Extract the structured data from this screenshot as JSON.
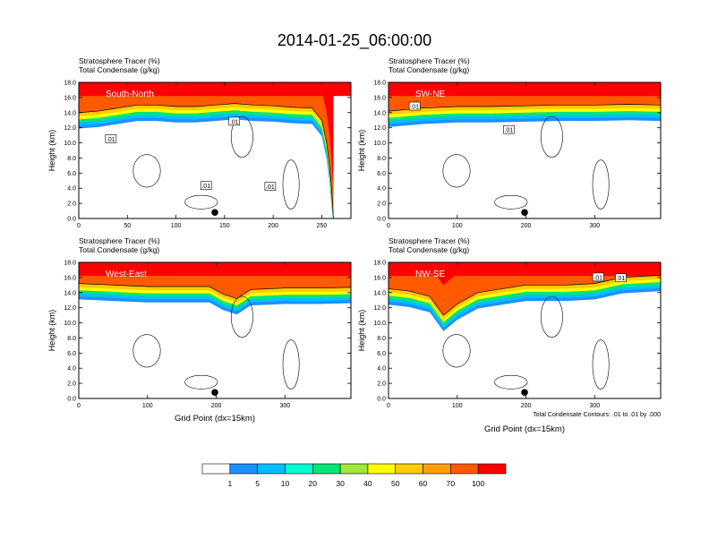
{
  "title": "2014-01-25_06:00:00",
  "colors": {
    "levels": [
      "#ffffff",
      "#1e90ff",
      "#00bfff",
      "#00ffd0",
      "#00e676",
      "#a0e63c",
      "#ffff00",
      "#ffcc00",
      "#ffa000",
      "#ff5a00",
      "#ff0000"
    ],
    "contour": "#000000",
    "dot": "#000000"
  },
  "colorbar": {
    "labels": [
      "1",
      "5",
      "10",
      "20",
      "30",
      "40",
      "50",
      "60",
      "70",
      "100"
    ]
  },
  "footnote": "Total Condensate Contours: .01 to .01 by .000",
  "xlabel": "Grid Point (dx=15km)",
  "ylabel": "Height (km)",
  "chart_data": [
    {
      "type": "heatmap",
      "region_label": "South-North",
      "header_line1": "Stratosphere Tracer   (%)",
      "header_line2": "Total Condensate   (g/kg)",
      "xlim": [
        0,
        280
      ],
      "ylim": [
        0,
        18
      ],
      "xticks": [
        "0",
        "50",
        "100",
        "150",
        "200",
        "250"
      ],
      "yticks": [
        "0.0",
        "2.0",
        "4.0",
        "6.0",
        "8.0",
        "10.0",
        "12.0",
        "14.0",
        "16.0",
        "18.0"
      ],
      "xlabel": "",
      "ylabel": "Height (km)",
      "contour_labels": [
        {
          "text": ".01",
          "x": 160,
          "y": 12.8
        },
        {
          "text": ".01",
          "x": 33,
          "y": 10.5
        },
        {
          "text": ".01",
          "x": 131,
          "y": 4.3
        },
        {
          "text": ".01",
          "x": 197,
          "y": 4.2
        }
      ],
      "tropopause": [
        [
          0,
          14.0
        ],
        [
          20,
          14.2
        ],
        [
          40,
          14.6
        ],
        [
          60,
          15.0
        ],
        [
          80,
          15.0
        ],
        [
          100,
          14.8
        ],
        [
          120,
          14.8
        ],
        [
          140,
          15.0
        ],
        [
          160,
          15.2
        ],
        [
          180,
          15.0
        ],
        [
          200,
          14.9
        ],
        [
          220,
          14.7
        ],
        [
          240,
          14.6
        ],
        [
          250,
          13
        ],
        [
          255,
          10
        ],
        [
          258,
          7
        ],
        [
          260,
          4
        ],
        [
          262,
          0
        ]
      ],
      "marker": {
        "x": 140,
        "y": 0.8
      }
    },
    {
      "type": "heatmap",
      "region_label": "SW-NE",
      "header_line1": "Stratosphere Tracer   (%)",
      "header_line2": "Total Condensate   (g/kg)",
      "xlim": [
        0,
        396
      ],
      "ylim": [
        0,
        18
      ],
      "xticks": [
        "0",
        "100",
        "200",
        "300"
      ],
      "yticks": [
        "0.0",
        "2.0",
        "4.0",
        "6.0",
        "8.0",
        "10.0",
        "12.0",
        "14.0",
        "16.0",
        "18.0"
      ],
      "xlabel": "",
      "ylabel": "Height (km)",
      "contour_labels": [
        {
          "text": ".01",
          "x": 38,
          "y": 14.8
        },
        {
          "text": ".01",
          "x": 175,
          "y": 11.7
        }
      ],
      "tropopause": [
        [
          0,
          14.2
        ],
        [
          50,
          14.6
        ],
        [
          100,
          14.8
        ],
        [
          150,
          14.8
        ],
        [
          200,
          14.9
        ],
        [
          250,
          15.0
        ],
        [
          300,
          15.0
        ],
        [
          350,
          15.1
        ],
        [
          396,
          15.0
        ]
      ],
      "marker": {
        "x": 198,
        "y": 0.8
      }
    },
    {
      "type": "heatmap",
      "region_label": "West-East",
      "header_line1": "Stratosphere Tracer   (%)",
      "header_line2": "Total Condensate   (g/kg)",
      "xlim": [
        0,
        396
      ],
      "ylim": [
        0,
        18
      ],
      "xticks": [
        "0",
        "100",
        "200",
        "300"
      ],
      "yticks": [
        "0.0",
        "2.0",
        "4.0",
        "6.0",
        "8.0",
        "10.0",
        "12.0",
        "14.0",
        "16.0",
        "18.0"
      ],
      "xlabel": "Grid Point (dx=15km)",
      "ylabel": "Height (km)",
      "contour_labels": [],
      "tropopause": [
        [
          0,
          15.2
        ],
        [
          50,
          15.0
        ],
        [
          100,
          14.8
        ],
        [
          150,
          14.8
        ],
        [
          190,
          14.8
        ],
        [
          210,
          13.8
        ],
        [
          230,
          13.2
        ],
        [
          250,
          14.4
        ],
        [
          300,
          14.6
        ],
        [
          350,
          14.6
        ],
        [
          396,
          14.7
        ]
      ],
      "marker": {
        "x": 198,
        "y": 0.8
      }
    },
    {
      "type": "heatmap",
      "region_label": "NW-SE",
      "header_line1": "Stratosphere Tracer   (%)",
      "header_line2": "Total Condensate   (g/kg)",
      "xlim": [
        0,
        396
      ],
      "ylim": [
        0,
        18
      ],
      "xticks": [
        "0",
        "100",
        "200",
        "300"
      ],
      "yticks": [
        "0.0",
        "2.0",
        "4.0",
        "6.0",
        "8.0",
        "10.0",
        "12.0",
        "14.0",
        "16.0",
        "18.0"
      ],
      "xlabel": "Grid Point (dx=15km)",
      "ylabel": "Height (km)",
      "contour_labels": [
        {
          "text": ".01",
          "x": 305,
          "y": 16.0
        },
        {
          "text": ".01",
          "x": 338,
          "y": 15.9
        }
      ],
      "tropopause": [
        [
          0,
          14.5
        ],
        [
          30,
          14.2
        ],
        [
          60,
          13.5
        ],
        [
          80,
          11.0
        ],
        [
          100,
          12.5
        ],
        [
          130,
          14.0
        ],
        [
          200,
          15.0
        ],
        [
          260,
          15.0
        ],
        [
          300,
          15.2
        ],
        [
          340,
          16.0
        ],
        [
          396,
          16.3
        ]
      ],
      "marker": {
        "x": 198,
        "y": 0.8
      }
    }
  ]
}
